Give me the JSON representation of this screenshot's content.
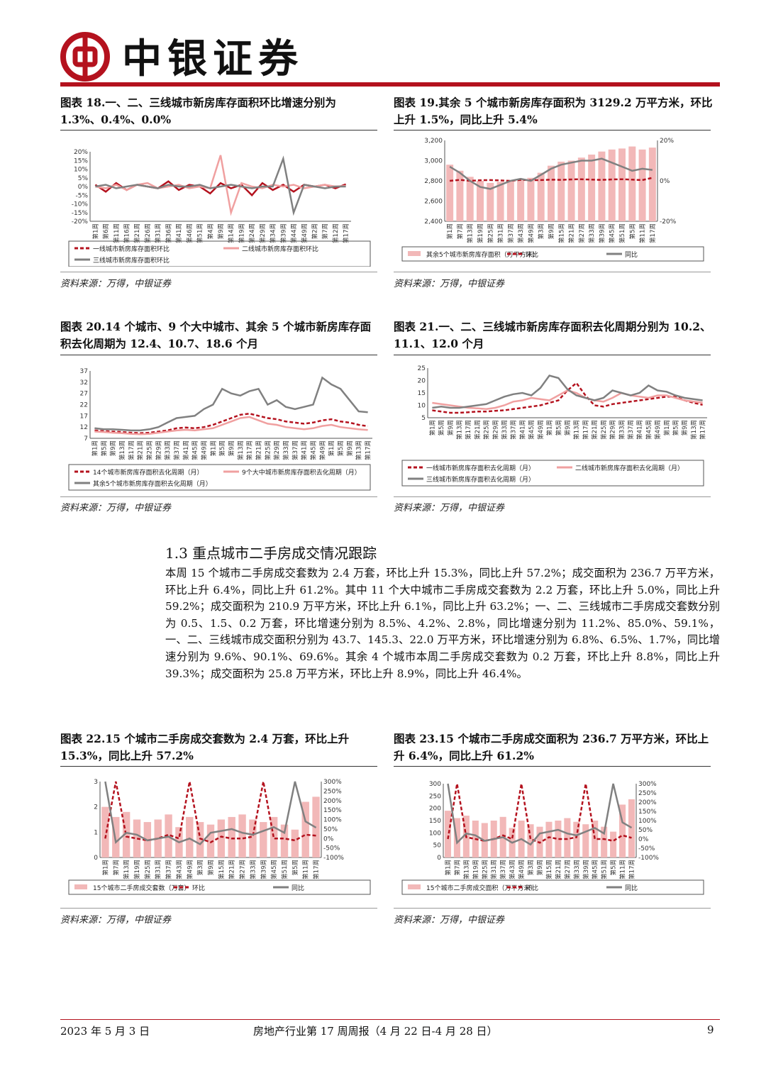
{
  "header": {
    "brand": "中银证券"
  },
  "figures": [
    {
      "id": "fig18",
      "caption": "图表 18.一、二、三线城市新房库存面积环比增速分别为 1.3%、0.4%、0.0%",
      "source": "资料来源：万得，中银证券",
      "legend": [
        "一线城市新房库存面积环比",
        "二线城市新房库存面积环比",
        "三线城市新房库存面积环比"
      ]
    },
    {
      "id": "fig19",
      "caption": "图表 19.其余 5 个城市新房库存面积为 3129.2 万平方米，环比上升 1.5%，同比上升 5.4%",
      "source": "资料来源：万得，中银证券",
      "legend": [
        "其余5个城市新房库存面积（万平方米）",
        "环比",
        "同比"
      ]
    },
    {
      "id": "fig20",
      "caption": "图表 20.14 个城市、9 个大中城市、其余 5 个城市新房库存面积去化周期为 12.4、10.7、18.6 个月",
      "source": "资料来源：万得，中银证券",
      "legend": [
        "14个城市新房库存面积去化周期（月）",
        "9个大中城市新房库存面积去化周期（月）",
        "其余5个城市新房库存面积去化周期（月）"
      ]
    },
    {
      "id": "fig21",
      "caption": "图表 21.一、二、三线城市新房库存面积去化周期分别为 10.2、11.1、12.0 个月",
      "source": "资料来源：万得，中银证券",
      "legend": [
        "一线城市新房库存面积去化周期（月）",
        "二线城市新房库存面积去化周期（月）",
        "三线城市新房库存面积去化周期（月）"
      ]
    },
    {
      "id": "fig22",
      "caption": "图表 22.15 个城市二手房成交套数为 2.4 万套，环比上升 15.3%，同比上升 57.2%",
      "source": "资料来源：万得，中银证券",
      "legend": [
        "15个城市二手房成交套数（万套）",
        "环比",
        "同比"
      ]
    },
    {
      "id": "fig23",
      "caption": "图表 23.15 个城市二手房成交面积为 236.7 万平方米，环比上升 6.4%，同比上升 61.2%",
      "source": "资料来源：万得，中银证券",
      "legend": [
        "15个城市二手房成交面积（万平方米）",
        "环比",
        "同比"
      ]
    }
  ],
  "section": {
    "title": "1.3 重点城市二手房成交情况跟踪",
    "body": "本周 15 个城市二手房成交套数为 2.4 万套，环比上升 15.3%，同比上升 57.2%；成交面积为 236.7 万平方米，环比上升 6.4%，同比上升 61.2%。其中 11 个大中城市二手房成交套数为 2.2 万套，环比上升 5.0%，同比上升 59.2%；成交面积为 210.9 万平方米，环比上升 6.1%，同比上升 63.2%；一、二、三线城市二手房成交套数分别为 0.5、1.5、0.2 万套，环比增速分别为 8.5%、4.2%、2.8%，同比增速分别为 11.2%、85.0%、59.1%，一、二、三线城市成交面积分别为 43.7、145.3、22.0 万平方米，环比增速分别为 6.8%、6.5%、1.7%，同比增速分别为 9.6%、90.1%、69.6%。其余 4 个城市本周二手房成交套数为 0.2 万套，环比上升 8.8%，同比上升 39.3%；成交面积为 25.8 万平方米，环比上升 8.9%，同比上升 46.4%。"
  },
  "footer": {
    "date": "2023 年 5 月 3 日",
    "title": "房地产行业第 17 周周报（4 月 22 日-4 月 28 日）",
    "page": "9"
  },
  "chart_data": [
    {
      "type": "line",
      "id": "fig18",
      "ylim": [
        -0.2,
        0.2
      ],
      "yticks": [
        "20%",
        "15%",
        "10%",
        "5%",
        "0%",
        "-5%",
        "-10%",
        "-15%",
        "-20%"
      ],
      "xticks": [
        "第1周",
        "第6周",
        "第11周",
        "第16周",
        "第21周",
        "第26周",
        "第31周",
        "第36周",
        "第41周",
        "第46周",
        "第51周",
        "第4周",
        "第9周",
        "第14周",
        "第19周",
        "第24周",
        "第29周",
        "第34周",
        "第39周",
        "第44周",
        "第49周",
        "第2周",
        "第7周",
        "第12周",
        "第17周"
      ],
      "series": [
        {
          "name": "一线城市新房库存面积环比",
          "color": "#b4121e",
          "values": [
            0.01,
            -0.03,
            0.02,
            -0.02,
            0.01,
            0.0,
            -0.01,
            0.03,
            -0.02,
            0.01,
            0.0,
            -0.04,
            0.02,
            -0.01,
            0.01,
            -0.05,
            0.02,
            -0.02,
            0.01,
            -0.03,
            0.01,
            0.0,
            0.01,
            -0.01,
            0.013
          ]
        },
        {
          "name": "二线城市新房库存面积环比",
          "color": "#f0a0a0",
          "values": [
            0.0,
            -0.01,
            0.01,
            -0.02,
            0.01,
            0.02,
            -0.01,
            0.0,
            0.01,
            -0.01,
            0.0,
            -0.01,
            0.18,
            -0.15,
            0.02,
            0.0,
            -0.01,
            0.01,
            0.0,
            0.01,
            -0.01,
            0.0,
            0.01,
            0.0,
            0.004
          ]
        },
        {
          "name": "三线城市新房库存面积环比",
          "color": "#808080",
          "values": [
            0.0,
            0.01,
            -0.01,
            0.0,
            0.01,
            0.0,
            -0.01,
            0.01,
            0.0,
            0.0,
            0.01,
            -0.01,
            0.0,
            0.01,
            0.0,
            -0.01,
            0.0,
            0.0,
            0.16,
            -0.15,
            0.01,
            0.0,
            -0.01,
            0.0,
            0.0
          ]
        }
      ]
    },
    {
      "type": "bar",
      "id": "fig19",
      "ylim": [
        2400,
        3200
      ],
      "y2lim": [
        -0.2,
        0.2
      ],
      "yticks": [
        "3,200",
        "3,000",
        "2,800",
        "2,600",
        "2,400"
      ],
      "y2ticks": [
        "20%",
        "0%",
        "-20%"
      ],
      "xticks": [
        "第1周",
        "第7周",
        "第13周",
        "第19周",
        "第25周",
        "第31周",
        "第37周",
        "第43周",
        "第49周",
        "第3周",
        "第9周",
        "第15周",
        "第21周",
        "第27周",
        "第33周",
        "第39周",
        "第45周",
        "第51周",
        "第5周",
        "第11周",
        "第17周"
      ],
      "series": [
        {
          "name": "其余5个城市新房库存面积（万平方米）",
          "color": "#f2b8b8",
          "values": [
            2960,
            2900,
            2840,
            2800,
            2780,
            2790,
            2800,
            2810,
            2830,
            2880,
            2950,
            2990,
            3000,
            3030,
            3060,
            3090,
            3110,
            3120,
            3140,
            3110,
            3129.2
          ]
        },
        {
          "name": "环比",
          "color": "#b4121e",
          "values": [
            0.0,
            0.005,
            0.0,
            0.003,
            0.004,
            0.002,
            0.0,
            0.005,
            0.003,
            0.004,
            0.006,
            0.005,
            0.007,
            0.008,
            0.006,
            0.005,
            0.007,
            0.008,
            0.006,
            0.004,
            0.015
          ]
        },
        {
          "name": "同比",
          "color": "#808080",
          "values": [
            0.07,
            0.04,
            0.0,
            -0.03,
            -0.04,
            -0.02,
            0.0,
            0.01,
            0.0,
            0.03,
            0.06,
            0.08,
            0.09,
            0.1,
            0.1,
            0.11,
            0.09,
            0.07,
            0.05,
            0.06,
            0.054
          ]
        }
      ]
    },
    {
      "type": "line",
      "id": "fig20",
      "ylim": [
        7,
        37
      ],
      "yticks": [
        "37",
        "32",
        "27",
        "22",
        "17",
        "12",
        "7"
      ],
      "xticks": [
        "第1周",
        "第5周",
        "第9周",
        "第13周",
        "第17周",
        "第21周",
        "第25周",
        "第29周",
        "第33周",
        "第37周",
        "第41周",
        "第45周",
        "第49周",
        "第1周",
        "第5周",
        "第9周",
        "第13周",
        "第17周",
        "第21周",
        "第25周",
        "第29周",
        "第33周",
        "第37周",
        "第41周",
        "第45周",
        "第49周",
        "第1周",
        "第5周",
        "第9周",
        "第13周",
        "第17周"
      ],
      "series": [
        {
          "name": "14个城市新房库存面积去化周期（月）",
          "color": "#b4121e",
          "values": [
            10.5,
            10.2,
            10.0,
            9.8,
            9.5,
            9.3,
            9.5,
            10.0,
            10.5,
            11.5,
            11.8,
            11.5,
            12.0,
            13.0,
            14.5,
            16.0,
            17.5,
            18.0,
            17.0,
            16.0,
            15.5,
            14.5,
            14.0,
            13.5,
            14.0,
            15.0,
            15.5,
            14.5,
            14.0,
            13.0,
            12.4
          ]
        },
        {
          "name": "9个大中城市新房库存面积去化周期（月）",
          "color": "#f0a0a0",
          "values": [
            10.0,
            9.8,
            9.5,
            9.3,
            9.0,
            8.8,
            9.0,
            9.5,
            10.0,
            10.5,
            10.8,
            10.5,
            11.0,
            11.5,
            13.0,
            14.5,
            16.0,
            16.5,
            15.0,
            13.5,
            13.0,
            12.0,
            11.5,
            11.0,
            11.5,
            12.5,
            13.0,
            12.0,
            11.5,
            11.0,
            10.7
          ]
        },
        {
          "name": "其余5个城市新房库存面积去化周期（月）",
          "color": "#808080",
          "values": [
            11.5,
            11.0,
            11.0,
            10.8,
            10.5,
            10.5,
            11.0,
            12.0,
            14.0,
            16.0,
            16.5,
            17.0,
            20.0,
            22.0,
            29.0,
            27.0,
            26.0,
            28.0,
            29.0,
            22.0,
            24.0,
            21.0,
            20.0,
            21.0,
            22.0,
            34.0,
            31.0,
            29.0,
            24.0,
            19.0,
            18.6
          ]
        }
      ]
    },
    {
      "type": "line",
      "id": "fig21",
      "ylim": [
        5,
        25
      ],
      "yticks": [
        "25",
        "20",
        "15",
        "10",
        "5"
      ],
      "xticks": [
        "第1周",
        "第5周",
        "第9周",
        "第13周",
        "第17周",
        "第21周",
        "第25周",
        "第29周",
        "第33周",
        "第37周",
        "第41周",
        "第45周",
        "第49周",
        "第1周",
        "第5周",
        "第9周",
        "第13周",
        "第17周",
        "第21周",
        "第25周",
        "第29周",
        "第33周",
        "第37周",
        "第41周",
        "第45周",
        "第49周",
        "第1周",
        "第5周",
        "第9周",
        "第13周",
        "第17周"
      ],
      "series": [
        {
          "name": "一线城市新房库存面积去化周期（月）",
          "color": "#b4121e",
          "values": [
            8.0,
            7.5,
            7.0,
            7.0,
            7.2,
            7.5,
            7.5,
            7.8,
            8.0,
            8.5,
            9.0,
            9.5,
            10.0,
            11.0,
            12.0,
            16.0,
            19.0,
            14.0,
            10.0,
            9.5,
            10.5,
            11.0,
            11.5,
            12.0,
            12.5,
            13.0,
            13.5,
            13.5,
            12.0,
            11.0,
            10.2
          ]
        },
        {
          "name": "二线城市新房库存面积去化周期（月）",
          "color": "#f0a0a0",
          "values": [
            11.0,
            10.5,
            10.0,
            9.5,
            9.0,
            8.8,
            8.5,
            9.0,
            10.0,
            11.5,
            12.0,
            13.0,
            12.5,
            12.0,
            14.0,
            16.0,
            15.0,
            13.0,
            12.0,
            11.5,
            13.0,
            15.0,
            14.0,
            13.5,
            13.0,
            14.0,
            14.0,
            13.0,
            12.0,
            11.5,
            11.1
          ]
        },
        {
          "name": "三线城市新房库存面积去化周期（月）",
          "color": "#808080",
          "values": [
            9.0,
            9.5,
            9.0,
            9.0,
            9.5,
            10.0,
            10.5,
            12.0,
            13.5,
            14.5,
            15.0,
            14.0,
            17.0,
            22.0,
            21.0,
            16.5,
            14.0,
            13.0,
            12.0,
            13.0,
            16.0,
            15.0,
            14.0,
            15.0,
            18.0,
            16.0,
            15.5,
            14.0,
            13.0,
            12.5,
            12.0
          ]
        }
      ]
    },
    {
      "type": "bar",
      "id": "fig22",
      "ylim": [
        0,
        3
      ],
      "y2lim": [
        -1,
        3
      ],
      "yticks": [
        "3",
        "2",
        "1",
        "0"
      ],
      "y2ticks": [
        "300%",
        "250%",
        "200%",
        "150%",
        "100%",
        "50%",
        "0%",
        "-50%",
        "-100%"
      ],
      "xticks": [
        "第1周",
        "第7周",
        "第13周",
        "第19周",
        "第25周",
        "第31周",
        "第37周",
        "第43周",
        "第49周",
        "第3周",
        "第9周",
        "第15周",
        "第21周",
        "第27周",
        "第33周",
        "第39周",
        "第45周",
        "第51周",
        "第5周",
        "第11周",
        "第17周"
      ],
      "series": [
        {
          "name": "15个城市二手房成交套数（万套）",
          "color": "#f2b8b8",
          "values": [
            2.0,
            1.6,
            1.8,
            1.5,
            1.4,
            1.5,
            1.7,
            1.2,
            1.6,
            1.4,
            1.3,
            1.5,
            1.6,
            1.7,
            1.5,
            1.4,
            1.6,
            1.3,
            1.1,
            2.2,
            2.4
          ]
        },
        {
          "name": "环比",
          "color": "#b4121e",
          "values": [
            0.0,
            3.0,
            0.1,
            0.0,
            -0.1,
            0.0,
            0.2,
            0.0,
            3.0,
            0.0,
            -0.2,
            0.1,
            0.0,
            0.0,
            0.1,
            3.0,
            0.0,
            0.0,
            -0.1,
            0.2,
            0.153
          ]
        },
        {
          "name": "同比",
          "color": "#808080",
          "values": [
            3.0,
            -0.2,
            0.3,
            0.2,
            -0.1,
            0.0,
            0.1,
            -0.2,
            0.0,
            -0.3,
            0.3,
            0.4,
            0.5,
            0.3,
            0.2,
            0.4,
            0.6,
            0.3,
            3.0,
            0.9,
            0.572
          ]
        }
      ]
    },
    {
      "type": "bar",
      "id": "fig23",
      "ylim": [
        0,
        300
      ],
      "y2lim": [
        -1,
        3
      ],
      "yticks": [
        "300",
        "250",
        "200",
        "150",
        "100",
        "50",
        "0"
      ],
      "y2ticks": [
        "300%",
        "250%",
        "200%",
        "150%",
        "100%",
        "50%",
        "0%",
        "-50%",
        "-100%"
      ],
      "xticks": [
        "第1周",
        "第7周",
        "第13周",
        "第19周",
        "第25周",
        "第31周",
        "第37周",
        "第43周",
        "第49周",
        "第3周",
        "第9周",
        "第15周",
        "第21周",
        "第27周",
        "第33周",
        "第39周",
        "第45周",
        "第51周",
        "第5周",
        "第11周",
        "第17周"
      ],
      "series": [
        {
          "name": "15个城市二手房成交面积（万平方米）",
          "color": "#f2b8b8",
          "values": [
            190,
            160,
            170,
            150,
            140,
            150,
            165,
            120,
            150,
            135,
            125,
            145,
            150,
            160,
            145,
            135,
            150,
            125,
            105,
            215,
            236.7
          ]
        },
        {
          "name": "环比",
          "color": "#b4121e",
          "values": [
            0.0,
            3.0,
            0.1,
            0.0,
            -0.1,
            0.0,
            0.2,
            0.0,
            3.0,
            0.0,
            -0.2,
            0.1,
            0.0,
            0.0,
            0.1,
            3.0,
            0.0,
            0.0,
            -0.1,
            0.2,
            0.064
          ]
        },
        {
          "name": "同比",
          "color": "#808080",
          "values": [
            3.0,
            -0.2,
            0.3,
            0.2,
            -0.1,
            0.0,
            0.1,
            -0.2,
            0.0,
            -0.3,
            0.3,
            0.4,
            0.5,
            0.3,
            0.2,
            0.4,
            0.6,
            0.3,
            3.0,
            0.9,
            0.612
          ]
        }
      ]
    }
  ]
}
